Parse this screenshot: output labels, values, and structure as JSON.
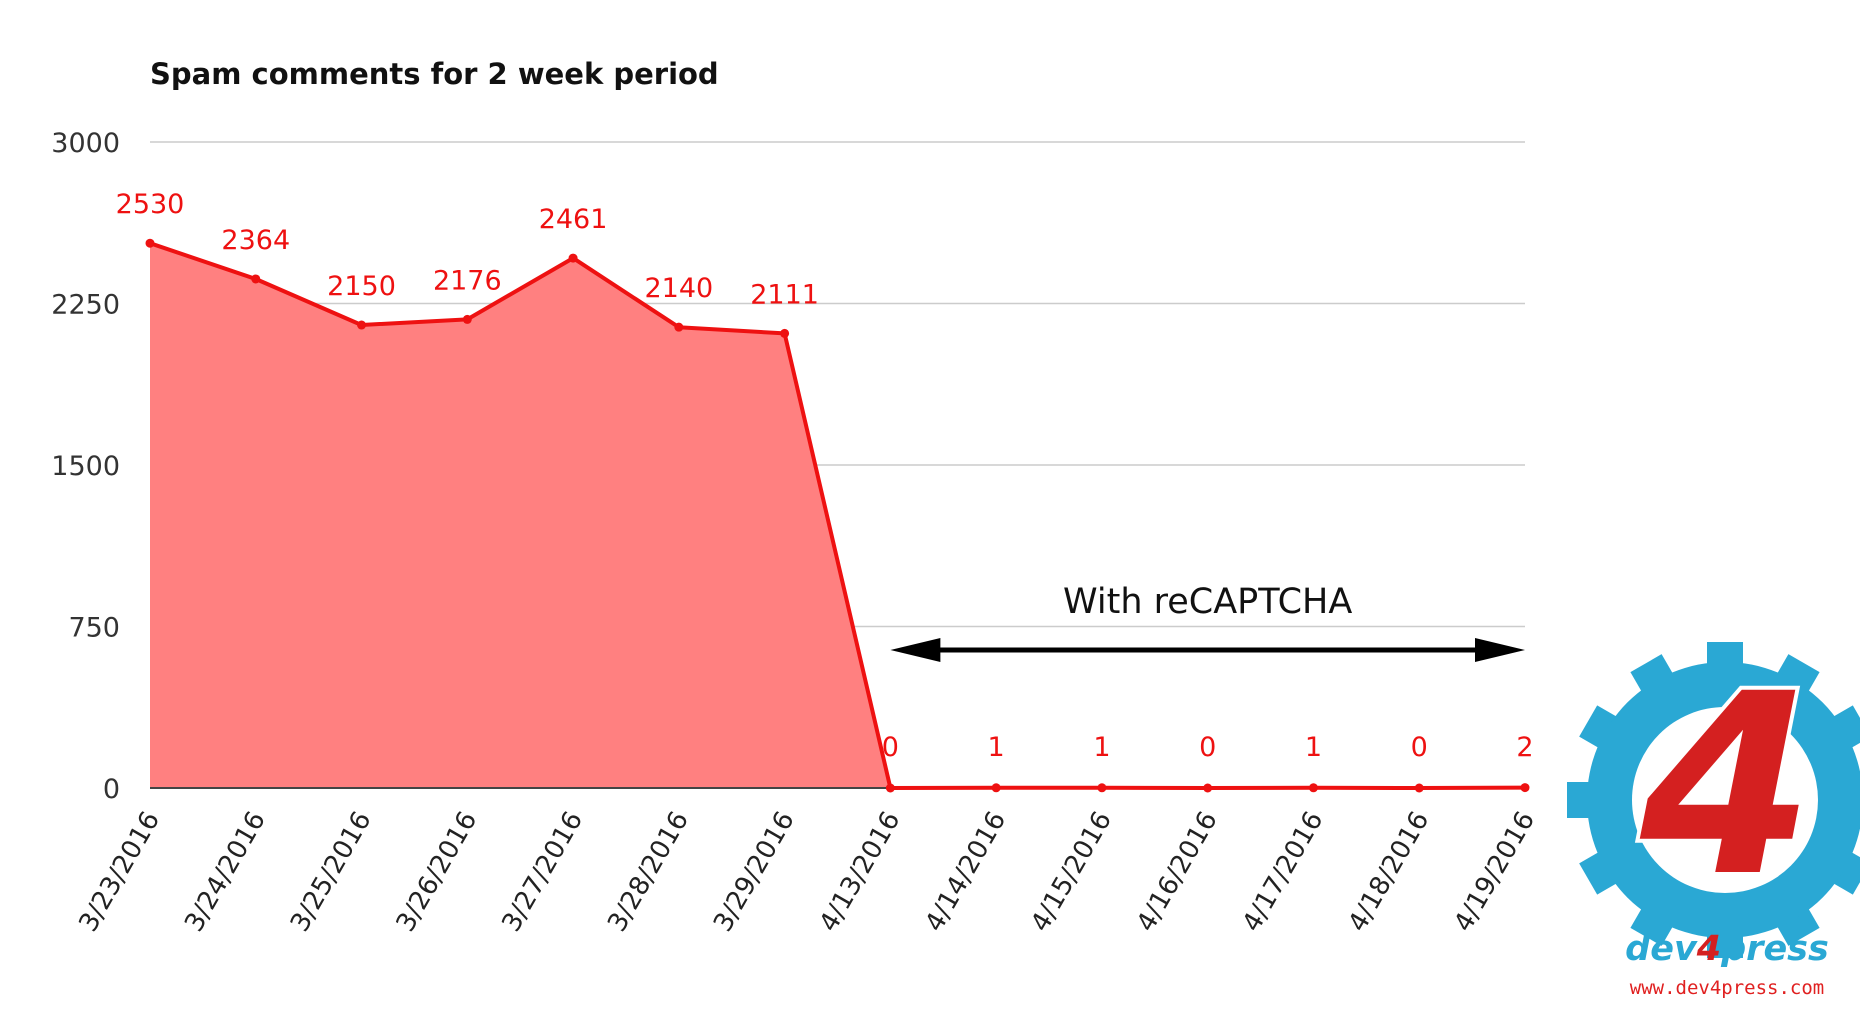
{
  "chart_data": {
    "type": "area",
    "title": "Spam comments for 2 week period",
    "xlabel": "",
    "ylabel": "",
    "categories": [
      "3/23/2016",
      "3/24/2016",
      "3/25/2016",
      "3/26/2016",
      "3/27/2016",
      "3/28/2016",
      "3/29/2016",
      "4/13/2016",
      "4/14/2016",
      "4/15/2016",
      "4/16/2016",
      "4/17/2016",
      "4/18/2016",
      "4/19/2016"
    ],
    "values": [
      2530,
      2364,
      2150,
      2176,
      2461,
      2140,
      2111,
      0,
      1,
      1,
      0,
      1,
      0,
      2
    ],
    "ylim": [
      0,
      3000
    ],
    "yticks": [
      0,
      750,
      1500,
      2250,
      3000
    ],
    "grid": true,
    "legend": "none",
    "annotation": {
      "text": "With reCAPTCHA",
      "from_category": "4/13/2016",
      "to_category": "4/19/2016"
    },
    "colors": {
      "line": "#ee1111",
      "fill": "#ff8080",
      "grid": "#cccccc",
      "axis": "#444444"
    }
  },
  "logo": {
    "glyph": "4",
    "brand_parts": [
      "dev",
      "4",
      "press"
    ],
    "url": "www.dev4press.com",
    "icon": "gear-icon",
    "colors": {
      "gear": "#2aa8d4",
      "four": "#d42020",
      "four_outline": "#ffffff"
    }
  }
}
